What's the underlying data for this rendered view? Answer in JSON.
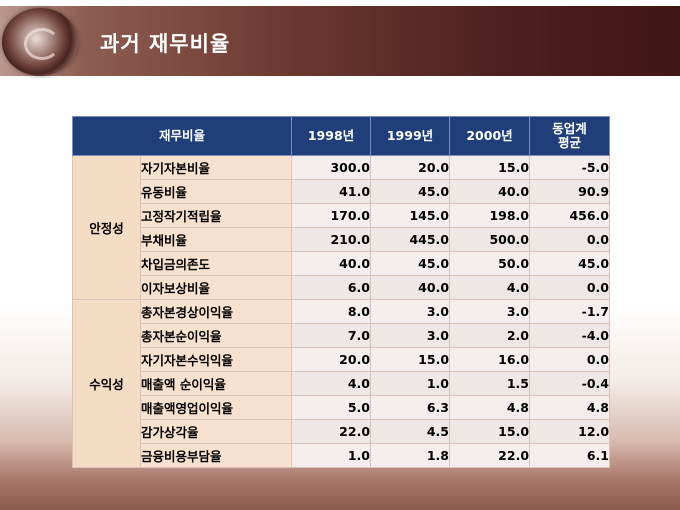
{
  "title": "과거 재무비율",
  "table": {
    "headers": [
      "재무비율",
      "1998년",
      "1999년",
      "2000년",
      "동업계 평균"
    ],
    "groups": [
      {
        "label": "안정성",
        "rows": [
          {
            "name": "자기자본비율",
            "v1998": "300.0",
            "v1999": "20.0",
            "v2000": "15.0",
            "avg": "-5.0"
          },
          {
            "name": "유동비율",
            "v1998": "41.0",
            "v1999": "45.0",
            "v2000": "40.0",
            "avg": "90.9"
          },
          {
            "name": "고정작기적립율",
            "v1998": "170.0",
            "v1999": "145.0",
            "v2000": "198.0",
            "avg": "456.0"
          },
          {
            "name": "부채비율",
            "v1998": "210.0",
            "v1999": "445.0",
            "v2000": "500.0",
            "avg": "0.0"
          },
          {
            "name": "차입금의존도",
            "v1998": "40.0",
            "v1999": "45.0",
            "v2000": "50.0",
            "avg": "45.0"
          },
          {
            "name": "이자보상비율",
            "v1998": "6.0",
            "v1999": "40.0",
            "v2000": "4.0",
            "avg": "0.0"
          }
        ]
      },
      {
        "label": "수익성",
        "rows": [
          {
            "name": "총자본경상이익율",
            "v1998": "8.0",
            "v1999": "3.0",
            "v2000": "3.0",
            "avg": "-1.7"
          },
          {
            "name": "총자본순이익율",
            "v1998": "7.0",
            "v1999": "3.0",
            "v2000": "2.0",
            "avg": "-4.0"
          },
          {
            "name": "자기자본수익익율",
            "v1998": "20.0",
            "v1999": "15.0",
            "v2000": "16.0",
            "avg": "0.0"
          },
          {
            "name": "매출액 순이익율",
            "v1998": "4.0",
            "v1999": "1.0",
            "v2000": "1.5",
            "avg": "-0.4"
          },
          {
            "name": "매출액영업이익율",
            "v1998": "5.0",
            "v1999": "6.3",
            "v2000": "4.8",
            "avg": "4.8"
          },
          {
            "name": "감가상각율",
            "v1998": "22.0",
            "v1999": "4.5",
            "v2000": "15.0",
            "avg": "12.0"
          },
          {
            "name": "금융비용부담율",
            "v1998": "1.0",
            "v1999": "1.8",
            "v2000": "22.0",
            "avg": "6.1"
          }
        ]
      }
    ]
  }
}
